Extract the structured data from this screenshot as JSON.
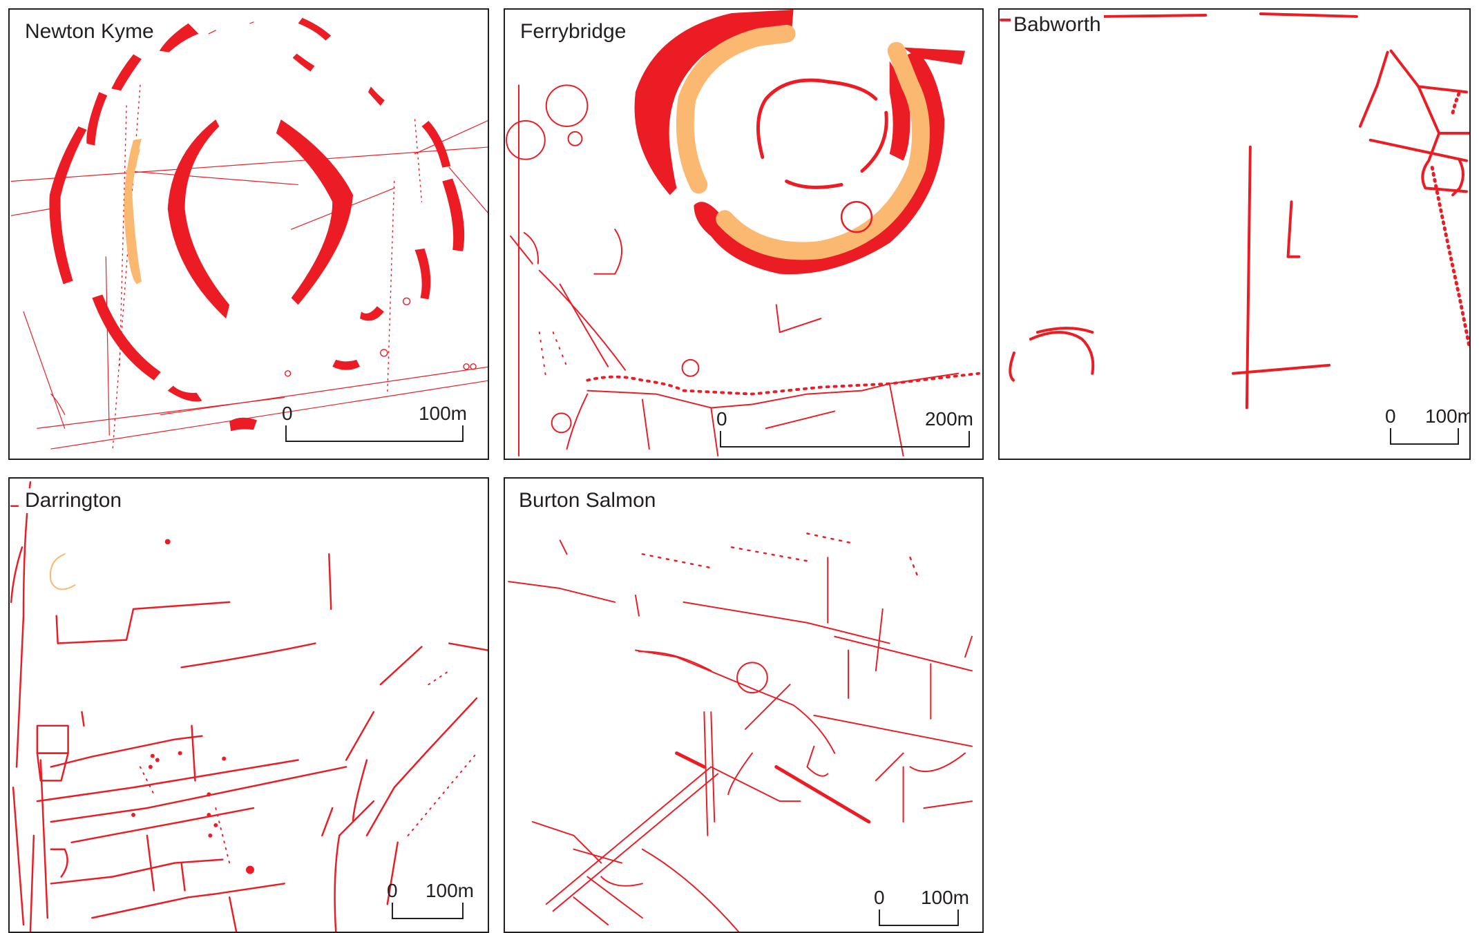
{
  "colors": {
    "feature": "#ec1c24",
    "secondary_feature": "#fbb870",
    "frame": "#231f20",
    "background": "#ffffff"
  },
  "panels": [
    {
      "id": "newton-kyme",
      "title": "Newton Kyme",
      "scale": {
        "zero": "0",
        "distance": "100m"
      }
    },
    {
      "id": "ferrybridge",
      "title": "Ferrybridge",
      "scale": {
        "zero": "0",
        "distance": "200m"
      }
    },
    {
      "id": "babworth",
      "title": "Babworth",
      "scale": {
        "zero": "0",
        "distance": "100m"
      }
    },
    {
      "id": "darrington",
      "title": "Darrington",
      "scale": {
        "zero": "0",
        "distance": "100m"
      }
    },
    {
      "id": "burton-salmon",
      "title": "Burton Salmon",
      "scale": {
        "zero": "0",
        "distance": "100m"
      }
    }
  ]
}
